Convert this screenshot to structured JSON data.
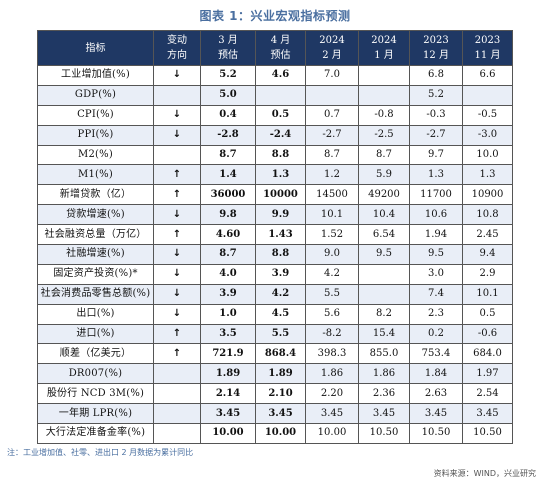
{
  "title": "图表 1：兴业宏观指标预测",
  "header": {
    "indicator": "指标",
    "direction": [
      "变动",
      "方向"
    ],
    "cols": [
      [
        "3 月",
        "预估"
      ],
      [
        "4 月",
        "预估"
      ],
      [
        "2024",
        "2 月"
      ],
      [
        "2024",
        "1 月"
      ],
      [
        "2023",
        "12 月"
      ],
      [
        "2023",
        "11 月"
      ]
    ]
  },
  "rows": [
    {
      "name": "工业增加值(%)",
      "dir": "↓",
      "dir_type": "down",
      "values": [
        "5.2",
        "4.6",
        "7.0",
        "",
        "6.8",
        "6.6"
      ]
    },
    {
      "name": "GDP(%)",
      "dir": "",
      "dir_type": "",
      "values": [
        "5.0",
        "",
        "",
        "",
        "5.2",
        ""
      ]
    },
    {
      "name": "CPI(%)",
      "dir": "↓",
      "dir_type": "down",
      "values": [
        "0.4",
        "0.5",
        "0.7",
        "-0.8",
        "-0.3",
        "-0.5"
      ]
    },
    {
      "name": "PPI(%)",
      "dir": "↓",
      "dir_type": "down",
      "values": [
        "-2.8",
        "-2.4",
        "-2.7",
        "-2.5",
        "-2.7",
        "-3.0"
      ]
    },
    {
      "name": "M2(%)",
      "dir": "",
      "dir_type": "",
      "values": [
        "8.7",
        "8.8",
        "8.7",
        "8.7",
        "9.7",
        "10.0"
      ]
    },
    {
      "name": "M1(%)",
      "dir": "↑",
      "dir_type": "up",
      "values": [
        "1.4",
        "1.3",
        "1.2",
        "5.9",
        "1.3",
        "1.3"
      ]
    },
    {
      "name": "新增贷款（亿）",
      "dir": "↑",
      "dir_type": "up",
      "values": [
        "36000",
        "10000",
        "14500",
        "49200",
        "11700",
        "10900"
      ]
    },
    {
      "name": "贷款增速(%)",
      "dir": "↓",
      "dir_type": "down",
      "values": [
        "9.8",
        "9.9",
        "10.1",
        "10.4",
        "10.6",
        "10.8"
      ]
    },
    {
      "name": "社会融资总量（万亿）",
      "dir": "↑",
      "dir_type": "up",
      "values": [
        "4.60",
        "1.43",
        "1.52",
        "6.54",
        "1.94",
        "2.45"
      ]
    },
    {
      "name": "社融增速(%)",
      "dir": "↓",
      "dir_type": "down",
      "values": [
        "8.7",
        "8.8",
        "9.0",
        "9.5",
        "9.5",
        "9.4"
      ]
    },
    {
      "name": "固定资产投资(%)*",
      "dir": "↓",
      "dir_type": "down",
      "values": [
        "4.0",
        "3.9",
        "4.2",
        "",
        "3.0",
        "2.9"
      ]
    },
    {
      "name": "社会消费品零售总额(%)",
      "dir": "↓",
      "dir_type": "down",
      "values": [
        "3.9",
        "4.2",
        "5.5",
        "",
        "7.4",
        "10.1"
      ]
    },
    {
      "name": "出口(%)",
      "dir": "↓",
      "dir_type": "down",
      "values": [
        "1.0",
        "4.5",
        "5.6",
        "8.2",
        "2.3",
        "0.5"
      ]
    },
    {
      "name": "进口(%)",
      "dir": "↑",
      "dir_type": "up",
      "values": [
        "3.5",
        "5.5",
        "-8.2",
        "15.4",
        "0.2",
        "-0.6"
      ]
    },
    {
      "name": "顺差（亿美元）",
      "dir": "↑",
      "dir_type": "up",
      "values": [
        "721.9",
        "868.4",
        "398.3",
        "855.0",
        "753.4",
        "684.0"
      ]
    },
    {
      "name": "DR007(%)",
      "dir": "",
      "dir_type": "",
      "values": [
        "1.89",
        "1.89",
        "1.86",
        "1.86",
        "1.84",
        "1.97"
      ]
    },
    {
      "name": "股份行 NCD 3M(%)",
      "dir": "",
      "dir_type": "",
      "values": [
        "2.14",
        "2.10",
        "2.20",
        "2.36",
        "2.63",
        "2.54"
      ]
    },
    {
      "name": "一年期 LPR(%)",
      "dir": "",
      "dir_type": "",
      "values": [
        "3.45",
        "3.45",
        "3.45",
        "3.45",
        "3.45",
        "3.45"
      ]
    },
    {
      "name": "大行法定准备金率(%)",
      "dir": "",
      "dir_type": "",
      "values": [
        "10.00",
        "10.00",
        "10.00",
        "10.50",
        "10.50",
        "10.50"
      ]
    }
  ],
  "note": "注：工业增加值、社零、进出口 2 月数据为累计同比",
  "source": "资料来源：WIND，兴业研究",
  "colors": {
    "header_bg": "#1f3864",
    "up": "#d0303a",
    "down": "#2e9c3b",
    "title": "#4a6fa0"
  }
}
